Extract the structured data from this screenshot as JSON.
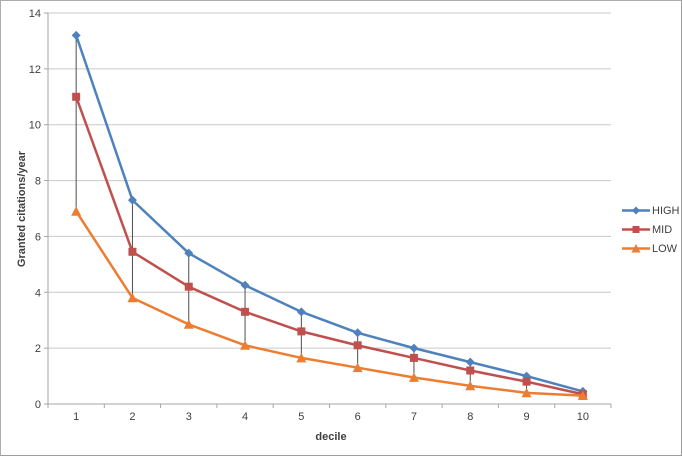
{
  "chart_data": {
    "type": "line",
    "title": "",
    "xlabel": "decile",
    "ylabel": "Granted citations/year",
    "categories": [
      "1",
      "2",
      "3",
      "4",
      "5",
      "6",
      "7",
      "8",
      "9",
      "10"
    ],
    "ylim": [
      0,
      14
    ],
    "ytick_step": 2,
    "ytick_labels": [
      "0",
      "2",
      "4",
      "6",
      "8",
      "10",
      "12",
      "14"
    ],
    "grid": true,
    "legend_position": "right",
    "high_low_lines": true,
    "series": [
      {
        "name": "HIGH",
        "marker": "diamond",
        "color": "#4F81BD",
        "values": [
          13.2,
          7.3,
          5.4,
          4.25,
          3.3,
          2.55,
          2.0,
          1.5,
          1.0,
          0.45
        ]
      },
      {
        "name": "MID",
        "marker": "square",
        "color": "#C0504D",
        "values": [
          11.0,
          5.45,
          4.2,
          3.3,
          2.6,
          2.1,
          1.65,
          1.2,
          0.8,
          0.35
        ]
      },
      {
        "name": "LOW",
        "marker": "triangle",
        "color": "#ED7D31",
        "values": [
          6.9,
          3.8,
          2.85,
          2.1,
          1.65,
          1.3,
          0.95,
          0.65,
          0.4,
          0.3
        ]
      }
    ]
  },
  "colors": {
    "text": "#3F3F3F",
    "gridline": "#C9C9C9",
    "axis": "#A6A6A6",
    "high_low_line": "#4D4D4D",
    "background": "#FFFFFF"
  }
}
